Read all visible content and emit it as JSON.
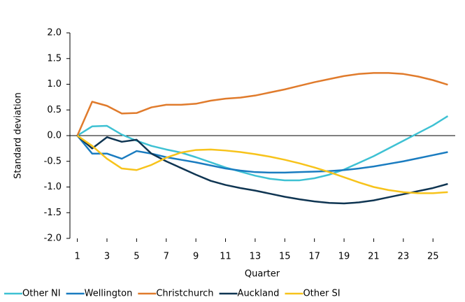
{
  "chart_data": {
    "type": "line",
    "y_label": "Standard deviation",
    "x_label": "Quarter",
    "x": [
      1,
      2,
      3,
      4,
      5,
      6,
      7,
      8,
      9,
      10,
      11,
      12,
      13,
      14,
      15,
      16,
      17,
      18,
      19,
      20,
      21,
      22,
      23,
      24,
      25,
      26
    ],
    "xlim": [
      0.5,
      26.5
    ],
    "xticks": [
      1,
      3,
      5,
      7,
      9,
      11,
      13,
      15,
      17,
      19,
      21,
      23,
      25
    ],
    "ylim": [
      -2,
      2
    ],
    "yticks": [
      {
        "value": -2,
        "label": "-2.0"
      },
      {
        "value": -1.5,
        "label": "-1.5"
      },
      {
        "value": -1,
        "label": "-1.0"
      },
      {
        "value": -0.5,
        "label": "-0.5"
      },
      {
        "value": 0,
        "label": "0.0"
      },
      {
        "value": 0.5,
        "label": "0.5"
      },
      {
        "value": 1,
        "label": "1.0"
      },
      {
        "value": 1.5,
        "label": "1.5"
      },
      {
        "value": 2,
        "label": "2.0"
      }
    ],
    "grid": false,
    "legend": "bottom",
    "series": [
      {
        "name": "Other NI",
        "color": "#3ec1d3",
        "values": [
          0,
          0.18,
          0.19,
          0.02,
          -0.1,
          -0.2,
          -0.27,
          -0.33,
          -0.42,
          -0.52,
          -0.62,
          -0.7,
          -0.78,
          -0.84,
          -0.87,
          -0.87,
          -0.83,
          -0.76,
          -0.66,
          -0.53,
          -0.4,
          -0.25,
          -0.1,
          0.05,
          0.2,
          0.38
        ]
      },
      {
        "name": "Wellington",
        "color": "#1a7cc0",
        "values": [
          0,
          -0.35,
          -0.35,
          -0.45,
          -0.3,
          -0.35,
          -0.42,
          -0.47,
          -0.52,
          -0.58,
          -0.64,
          -0.68,
          -0.71,
          -0.72,
          -0.72,
          -0.71,
          -0.7,
          -0.69,
          -0.67,
          -0.64,
          -0.6,
          -0.55,
          -0.5,
          -0.44,
          -0.38,
          -0.32
        ]
      },
      {
        "name": "Christchurch",
        "color": "#e07b2c",
        "values": [
          0,
          0.66,
          0.58,
          0.43,
          0.44,
          0.55,
          0.6,
          0.6,
          0.62,
          0.68,
          0.72,
          0.74,
          0.78,
          0.84,
          0.9,
          0.97,
          1.04,
          1.1,
          1.16,
          1.2,
          1.22,
          1.22,
          1.2,
          1.15,
          1.08,
          0.99
        ]
      },
      {
        "name": "Auckland",
        "color": "#0f3552",
        "values": [
          0,
          -0.25,
          -0.03,
          -0.12,
          -0.08,
          -0.35,
          -0.5,
          -0.63,
          -0.76,
          -0.88,
          -0.96,
          -1.02,
          -1.07,
          -1.13,
          -1.19,
          -1.24,
          -1.28,
          -1.31,
          -1.32,
          -1.3,
          -1.26,
          -1.2,
          -1.14,
          -1.08,
          -1.02,
          -0.94
        ]
      },
      {
        "name": "Other SI",
        "color": "#f7c31b",
        "values": [
          0,
          -0.2,
          -0.45,
          -0.64,
          -0.67,
          -0.57,
          -0.43,
          -0.33,
          -0.28,
          -0.27,
          -0.29,
          -0.32,
          -0.36,
          -0.41,
          -0.47,
          -0.54,
          -0.62,
          -0.71,
          -0.81,
          -0.91,
          -1.0,
          -1.06,
          -1.1,
          -1.12,
          -1.12,
          -1.1
        ]
      }
    ]
  }
}
